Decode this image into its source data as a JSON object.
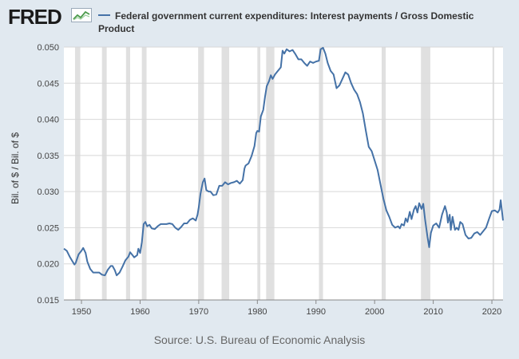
{
  "logo": {
    "text": "FRED",
    "icon": "fred-graph-icon"
  },
  "legend": {
    "text": "Federal government current expenditures: Interest payments / Gross Domestic Product",
    "color": "#4572a7"
  },
  "source": "Source: U.S. Bureau of Economic Analysis",
  "chart_data": {
    "type": "line",
    "title": "",
    "xlabel": "",
    "ylabel": "Bil. of $ / Bil. of $",
    "xlim": [
      1947,
      2021.9
    ],
    "ylim": [
      0.015,
      0.05
    ],
    "x_ticks": [
      1950,
      1960,
      1970,
      1980,
      1990,
      2000,
      2010,
      2020
    ],
    "y_ticks": [
      "0.015",
      "0.020",
      "0.025",
      "0.030",
      "0.035",
      "0.040",
      "0.045",
      "0.050"
    ],
    "grid": true,
    "recessions": [
      [
        1948.9,
        1949.8
      ],
      [
        1953.5,
        1954.3
      ],
      [
        1957.6,
        1958.3
      ],
      [
        1960.3,
        1961.1
      ],
      [
        1969.9,
        1970.9
      ],
      [
        1973.9,
        1975.2
      ],
      [
        1980.0,
        1980.5
      ],
      [
        1981.5,
        1982.9
      ],
      [
        1990.5,
        1991.2
      ],
      [
        2001.2,
        2001.9
      ],
      [
        2007.9,
        2009.5
      ],
      [
        2020.1,
        2020.4
      ]
    ],
    "series": [
      {
        "name": "Federal government current expenditures: Interest payments / Gross Domestic Product",
        "color": "#4572a7",
        "points": [
          [
            1947.0,
            0.0221
          ],
          [
            1947.5,
            0.0218
          ],
          [
            1948.0,
            0.021
          ],
          [
            1948.5,
            0.0203
          ],
          [
            1948.8,
            0.0199
          ],
          [
            1949.0,
            0.0201
          ],
          [
            1949.5,
            0.0213
          ],
          [
            1950.0,
            0.0218
          ],
          [
            1950.3,
            0.0222
          ],
          [
            1950.7,
            0.0215
          ],
          [
            1951.0,
            0.0203
          ],
          [
            1951.5,
            0.0193
          ],
          [
            1952.0,
            0.0188
          ],
          [
            1952.5,
            0.0188
          ],
          [
            1953.0,
            0.0188
          ],
          [
            1953.5,
            0.0185
          ],
          [
            1954.0,
            0.0184
          ],
          [
            1954.5,
            0.0192
          ],
          [
            1955.0,
            0.0197
          ],
          [
            1955.3,
            0.0197
          ],
          [
            1955.7,
            0.0191
          ],
          [
            1956.0,
            0.0184
          ],
          [
            1956.5,
            0.0188
          ],
          [
            1957.0,
            0.0196
          ],
          [
            1957.5,
            0.0205
          ],
          [
            1958.0,
            0.021
          ],
          [
            1958.3,
            0.0216
          ],
          [
            1958.7,
            0.0212
          ],
          [
            1959.0,
            0.0209
          ],
          [
            1959.5,
            0.0212
          ],
          [
            1959.7,
            0.0221
          ],
          [
            1960.0,
            0.0215
          ],
          [
            1960.3,
            0.023
          ],
          [
            1960.6,
            0.0255
          ],
          [
            1960.9,
            0.0258
          ],
          [
            1961.2,
            0.0252
          ],
          [
            1961.6,
            0.0254
          ],
          [
            1962.0,
            0.0249
          ],
          [
            1962.5,
            0.0248
          ],
          [
            1963.0,
            0.0252
          ],
          [
            1963.5,
            0.0255
          ],
          [
            1964.0,
            0.0255
          ],
          [
            1964.5,
            0.0255
          ],
          [
            1965.0,
            0.0256
          ],
          [
            1965.5,
            0.0255
          ],
          [
            1966.0,
            0.025
          ],
          [
            1966.5,
            0.0247
          ],
          [
            1967.0,
            0.0251
          ],
          [
            1967.5,
            0.0256
          ],
          [
            1968.0,
            0.0256
          ],
          [
            1968.5,
            0.0261
          ],
          [
            1969.0,
            0.0263
          ],
          [
            1969.5,
            0.026
          ],
          [
            1969.8,
            0.0268
          ],
          [
            1970.0,
            0.0278
          ],
          [
            1970.3,
            0.0297
          ],
          [
            1970.7,
            0.0313
          ],
          [
            1971.0,
            0.0318
          ],
          [
            1971.3,
            0.0302
          ],
          [
            1971.7,
            0.03
          ],
          [
            1972.0,
            0.03
          ],
          [
            1972.5,
            0.0295
          ],
          [
            1973.0,
            0.0296
          ],
          [
            1973.5,
            0.0308
          ],
          [
            1974.0,
            0.0308
          ],
          [
            1974.5,
            0.0313
          ],
          [
            1975.0,
            0.031
          ],
          [
            1975.5,
            0.0312
          ],
          [
            1976.0,
            0.0313
          ],
          [
            1976.5,
            0.0315
          ],
          [
            1977.0,
            0.0311
          ],
          [
            1977.5,
            0.0316
          ],
          [
            1977.8,
            0.0332
          ],
          [
            1978.0,
            0.0336
          ],
          [
            1978.5,
            0.0339
          ],
          [
            1979.0,
            0.0349
          ],
          [
            1979.5,
            0.0363
          ],
          [
            1979.8,
            0.0381
          ],
          [
            1980.0,
            0.0384
          ],
          [
            1980.3,
            0.0383
          ],
          [
            1980.6,
            0.0404
          ],
          [
            1981.0,
            0.0413
          ],
          [
            1981.3,
            0.0431
          ],
          [
            1981.6,
            0.0446
          ],
          [
            1982.0,
            0.0453
          ],
          [
            1982.3,
            0.0461
          ],
          [
            1982.6,
            0.0456
          ],
          [
            1983.0,
            0.0462
          ],
          [
            1983.5,
            0.0467
          ],
          [
            1984.0,
            0.0472
          ],
          [
            1984.3,
            0.0495
          ],
          [
            1984.6,
            0.0491
          ],
          [
            1985.0,
            0.0497
          ],
          [
            1985.5,
            0.0494
          ],
          [
            1986.0,
            0.0496
          ],
          [
            1986.5,
            0.049
          ],
          [
            1987.0,
            0.0483
          ],
          [
            1987.5,
            0.0483
          ],
          [
            1988.0,
            0.0478
          ],
          [
            1988.5,
            0.0474
          ],
          [
            1989.0,
            0.048
          ],
          [
            1989.5,
            0.0478
          ],
          [
            1990.0,
            0.048
          ],
          [
            1990.5,
            0.0481
          ],
          [
            1990.8,
            0.0497
          ],
          [
            1991.2,
            0.0499
          ],
          [
            1991.6,
            0.0491
          ],
          [
            1992.0,
            0.0478
          ],
          [
            1992.5,
            0.0467
          ],
          [
            1993.0,
            0.0462
          ],
          [
            1993.5,
            0.0443
          ],
          [
            1994.0,
            0.0447
          ],
          [
            1994.5,
            0.0456
          ],
          [
            1995.0,
            0.0465
          ],
          [
            1995.5,
            0.0462
          ],
          [
            1996.0,
            0.045
          ],
          [
            1996.5,
            0.0441
          ],
          [
            1997.0,
            0.0435
          ],
          [
            1997.5,
            0.0424
          ],
          [
            1998.0,
            0.0408
          ],
          [
            1998.5,
            0.0384
          ],
          [
            1999.0,
            0.0362
          ],
          [
            1999.5,
            0.0356
          ],
          [
            2000.0,
            0.0343
          ],
          [
            2000.5,
            0.033
          ],
          [
            2001.0,
            0.031
          ],
          [
            2001.5,
            0.029
          ],
          [
            2002.0,
            0.0274
          ],
          [
            2002.5,
            0.0265
          ],
          [
            2003.0,
            0.0254
          ],
          [
            2003.5,
            0.025
          ],
          [
            2004.0,
            0.0252
          ],
          [
            2004.3,
            0.0249
          ],
          [
            2004.6,
            0.0255
          ],
          [
            2005.0,
            0.0253
          ],
          [
            2005.3,
            0.0263
          ],
          [
            2005.6,
            0.0258
          ],
          [
            2006.0,
            0.0272
          ],
          [
            2006.3,
            0.0262
          ],
          [
            2006.7,
            0.0275
          ],
          [
            2007.0,
            0.028
          ],
          [
            2007.3,
            0.0271
          ],
          [
            2007.6,
            0.0284
          ],
          [
            2008.0,
            0.0276
          ],
          [
            2008.3,
            0.0283
          ],
          [
            2008.6,
            0.0262
          ],
          [
            2009.0,
            0.0238
          ],
          [
            2009.3,
            0.0223
          ],
          [
            2009.6,
            0.0243
          ],
          [
            2010.0,
            0.0253
          ],
          [
            2010.5,
            0.0256
          ],
          [
            2011.0,
            0.025
          ],
          [
            2011.5,
            0.0268
          ],
          [
            2012.0,
            0.028
          ],
          [
            2012.3,
            0.0271
          ],
          [
            2012.5,
            0.0257
          ],
          [
            2012.8,
            0.0268
          ],
          [
            2013.0,
            0.0247
          ],
          [
            2013.3,
            0.0265
          ],
          [
            2013.7,
            0.0247
          ],
          [
            2014.0,
            0.025
          ],
          [
            2014.3,
            0.0247
          ],
          [
            2014.6,
            0.0258
          ],
          [
            2015.0,
            0.0255
          ],
          [
            2015.5,
            0.024
          ],
          [
            2016.0,
            0.0235
          ],
          [
            2016.5,
            0.0236
          ],
          [
            2017.0,
            0.0242
          ],
          [
            2017.5,
            0.0244
          ],
          [
            2018.0,
            0.024
          ],
          [
            2018.5,
            0.0245
          ],
          [
            2019.0,
            0.025
          ],
          [
            2019.5,
            0.0262
          ],
          [
            2020.0,
            0.0273
          ],
          [
            2020.5,
            0.0274
          ],
          [
            2021.0,
            0.0271
          ],
          [
            2021.3,
            0.0275
          ],
          [
            2021.5,
            0.0288
          ],
          [
            2021.9,
            0.026
          ]
        ]
      }
    ]
  }
}
